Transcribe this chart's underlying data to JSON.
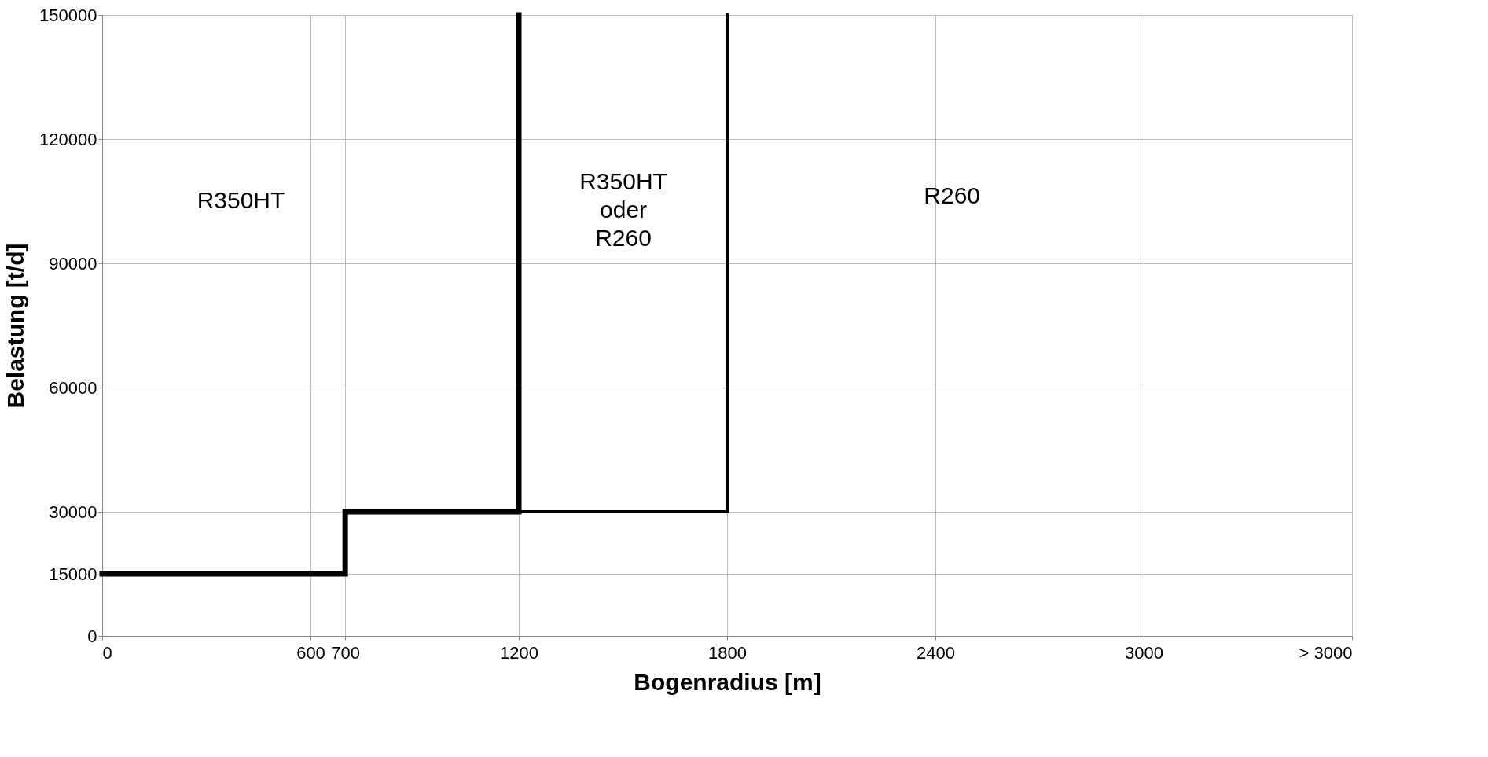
{
  "chart_data": {
    "type": "line",
    "xlabel": "Bogenradius [m]",
    "ylabel": "Belastung [t/d]",
    "xlim": [
      0,
      3600
    ],
    "xticks": [
      0,
      600,
      {
        "value": 700,
        "label": "700"
      },
      1200,
      1800,
      2400,
      3000,
      {
        "value": 3600,
        "label": "> 3000"
      }
    ],
    "ylim": [
      0,
      150000
    ],
    "yticks": [
      0,
      15000,
      30000,
      60000,
      90000,
      120000,
      150000
    ],
    "grid": true,
    "line_style": "solid",
    "marker": "none",
    "series": [
      {
        "color": "#000000",
        "x": [
          0,
          700,
          700,
          1200,
          1200
        ],
        "values": [
          15000,
          15000,
          30000,
          30000,
          150000
        ]
      },
      {
        "color": "#000000",
        "x": [
          1200,
          1800,
          1800
        ],
        "values": [
          30000,
          30000,
          150000
        ]
      }
    ],
    "annotations": [
      "R350HT",
      "R350HT\noder\nR260",
      "R260"
    ]
  }
}
